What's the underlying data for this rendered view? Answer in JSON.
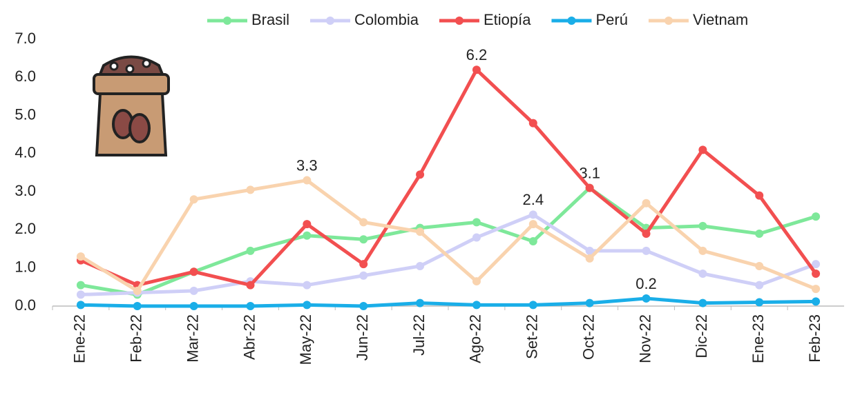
{
  "chart_data": {
    "type": "line",
    "categories": [
      "Ene-22",
      "Feb-22",
      "Mar-22",
      "Abr-22",
      "May-22",
      "Jun-22",
      "Jul-22",
      "Ago-22",
      "Set-22",
      "Oct-22",
      "Nov-22",
      "Dic-22",
      "Ene-23",
      "Feb-23"
    ],
    "series": [
      {
        "name": "Brasil",
        "color": "#7ee89a",
        "values": [
          0.55,
          0.3,
          0.9,
          1.45,
          1.85,
          1.75,
          2.05,
          2.2,
          1.7,
          3.1,
          2.05,
          2.1,
          1.9,
          2.35
        ],
        "labels_at": [
          9
        ]
      },
      {
        "name": "Colombia",
        "color": "#cfcff7",
        "values": [
          0.3,
          0.35,
          0.4,
          0.65,
          0.55,
          0.8,
          1.05,
          1.8,
          2.4,
          1.45,
          1.45,
          0.85,
          0.55,
          1.1
        ],
        "labels_at": [
          8
        ]
      },
      {
        "name": "Etiopía",
        "color": "#f24f50",
        "values": [
          1.2,
          0.55,
          0.9,
          0.55,
          2.15,
          1.1,
          3.45,
          6.2,
          4.8,
          3.1,
          1.9,
          4.1,
          2.9,
          0.85
        ],
        "labels_at": [
          7
        ]
      },
      {
        "name": "Perú",
        "color": "#1aaee8",
        "values": [
          0.03,
          0,
          0,
          0,
          0.03,
          0,
          0.08,
          0.03,
          0.03,
          0.08,
          0.2,
          0.08,
          0.1,
          0.12
        ],
        "labels_at": [
          10
        ]
      },
      {
        "name": "Vietnam",
        "color": "#f9d3ae",
        "values": [
          1.3,
          0.4,
          2.8,
          3.05,
          3.3,
          2.2,
          1.95,
          0.65,
          2.15,
          1.25,
          2.7,
          1.45,
          1.05,
          0.45
        ],
        "labels_at": [
          4
        ]
      }
    ],
    "ylim": [
      0,
      7
    ],
    "yticks": [
      {
        "value": 0,
        "label": "0.0"
      },
      {
        "value": 1,
        "label": "1.0"
      },
      {
        "value": 2,
        "label": "2.0"
      },
      {
        "value": 3,
        "label": "3.0"
      },
      {
        "value": 4,
        "label": "4.0"
      },
      {
        "value": 5,
        "label": "5.0"
      },
      {
        "value": 6,
        "label": "6.0"
      },
      {
        "value": 7,
        "label": "7.0"
      }
    ],
    "legend": "top"
  }
}
